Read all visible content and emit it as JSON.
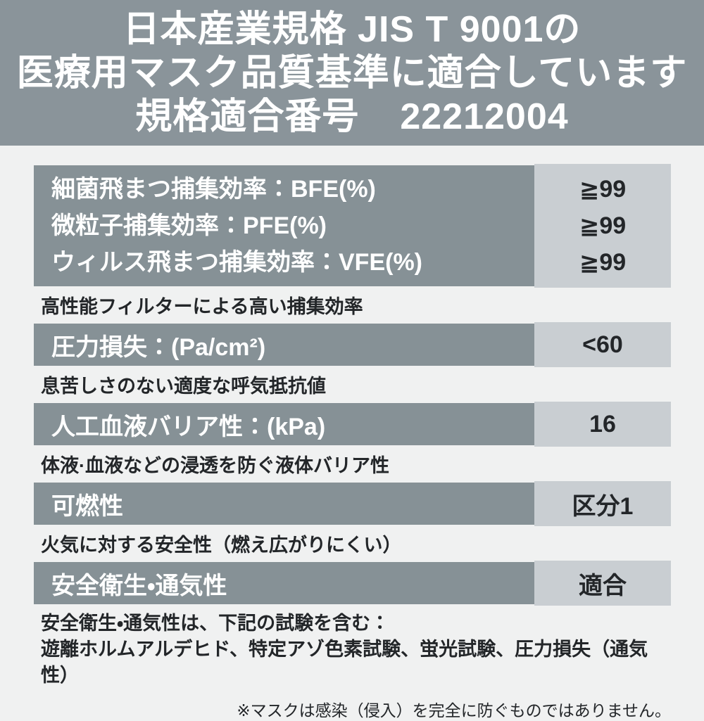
{
  "colors": {
    "header_bg": "#8A949A",
    "row_label_bg": "#869196",
    "row_value_bg": "#C9CED2",
    "page_bg": "#F0F1F1",
    "text_light": "#FFFFFF",
    "text_dark": "#232629"
  },
  "header": {
    "line1": "日本産業規格 JIS T 9001の",
    "line2": "医療用マスク品質基準に適合しています",
    "line3_label": "規格適合番号",
    "line3_number": "22212004"
  },
  "table": {
    "rows": [
      {
        "id": "filtration-efficiency",
        "labels": [
          "細菌飛まつ捕集効率：BFE(%)",
          "微粒子捕集効率：PFE(%)",
          "ウィルス飛まつ捕集効率：VFE(%)"
        ],
        "values": [
          "≧99",
          "≧99",
          "≧99"
        ],
        "notes": [
          "高性能フィルターによる高い捕集効率"
        ]
      },
      {
        "id": "pressure-loss",
        "labels": [
          "圧力損失：(Pa/cm²)"
        ],
        "values": [
          "<60"
        ],
        "notes": [
          "息苦しさのない適度な呼気抵抗値"
        ]
      },
      {
        "id": "artificial-blood-barrier",
        "labels": [
          "人工血液バリア性：(kPa)"
        ],
        "values": [
          "16"
        ],
        "notes": [
          "体液·血液などの浸透を防ぐ液体バリア性"
        ]
      },
      {
        "id": "flammability",
        "labels": [
          "可燃性"
        ],
        "values": [
          "区分1"
        ],
        "notes": [
          "火気に対する安全性（燃え広がりにくい）"
        ]
      },
      {
        "id": "safety-hygiene-breathability",
        "labels": [
          "安全衛生・通気性"
        ],
        "values": [
          "適合"
        ],
        "notes": [
          "安全衛生・通気性は、下記の試験を含む：",
          "遊離ホルムアルデヒド、特定アゾ色素試験、蛍光試験、圧力損失（通気性）"
        ],
        "notes_multiline": true
      }
    ]
  },
  "footer": {
    "disclaimer": "※マスクは感染（侵入）を完全に防ぐものではありません。"
  }
}
